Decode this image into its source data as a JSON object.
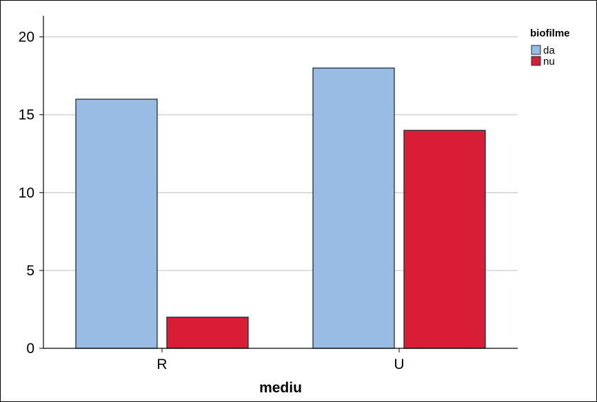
{
  "chart_data": {
    "type": "bar",
    "categories": [
      "R",
      "U"
    ],
    "series": [
      {
        "name": "da",
        "values": [
          16,
          18
        ],
        "color": "#98BCE4"
      },
      {
        "name": "nu",
        "values": [
          2,
          14
        ],
        "color": "#D71E36"
      }
    ],
    "xlabel": "mediu",
    "ylabel": "",
    "ylim": [
      0,
      21
    ],
    "yticks": [
      0,
      5,
      10,
      15,
      20
    ],
    "grid": true,
    "legend": {
      "title": "biofilme",
      "position": "top-right"
    }
  },
  "colors": {
    "bar_stroke": "#1f2d3d",
    "grid": "#cccccc",
    "axis": "#000000"
  }
}
